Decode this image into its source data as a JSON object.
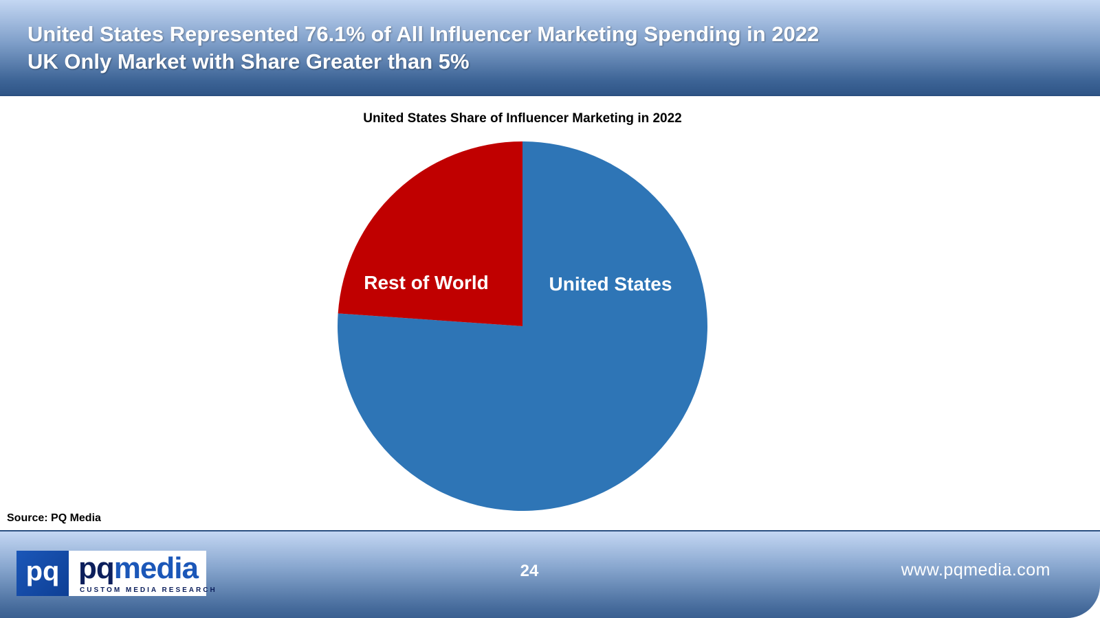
{
  "header": {
    "title_line1": "United States Represented 76.1% of All Influencer Marketing Spending in 2022",
    "title_line2": "UK Only Market with Share Greater than 5%"
  },
  "chart_data": {
    "type": "pie",
    "title": "United States Share of Influencer Marketing in 2022",
    "slices": [
      {
        "name": "United States",
        "value": 76.1,
        "color": "#2e75b6"
      },
      {
        "name": "Rest of World",
        "value": 23.9,
        "color": "#c00000"
      }
    ],
    "legend": "none",
    "labels": "inside"
  },
  "source": "Source: PQ Media",
  "footer": {
    "logo": {
      "mark": "pq",
      "word_prefix": "pq",
      "word_suffix": "media",
      "tagline": "CUSTOM MEDIA RESEARCH"
    },
    "page_number": "24",
    "website": "www.pqmedia.com"
  }
}
